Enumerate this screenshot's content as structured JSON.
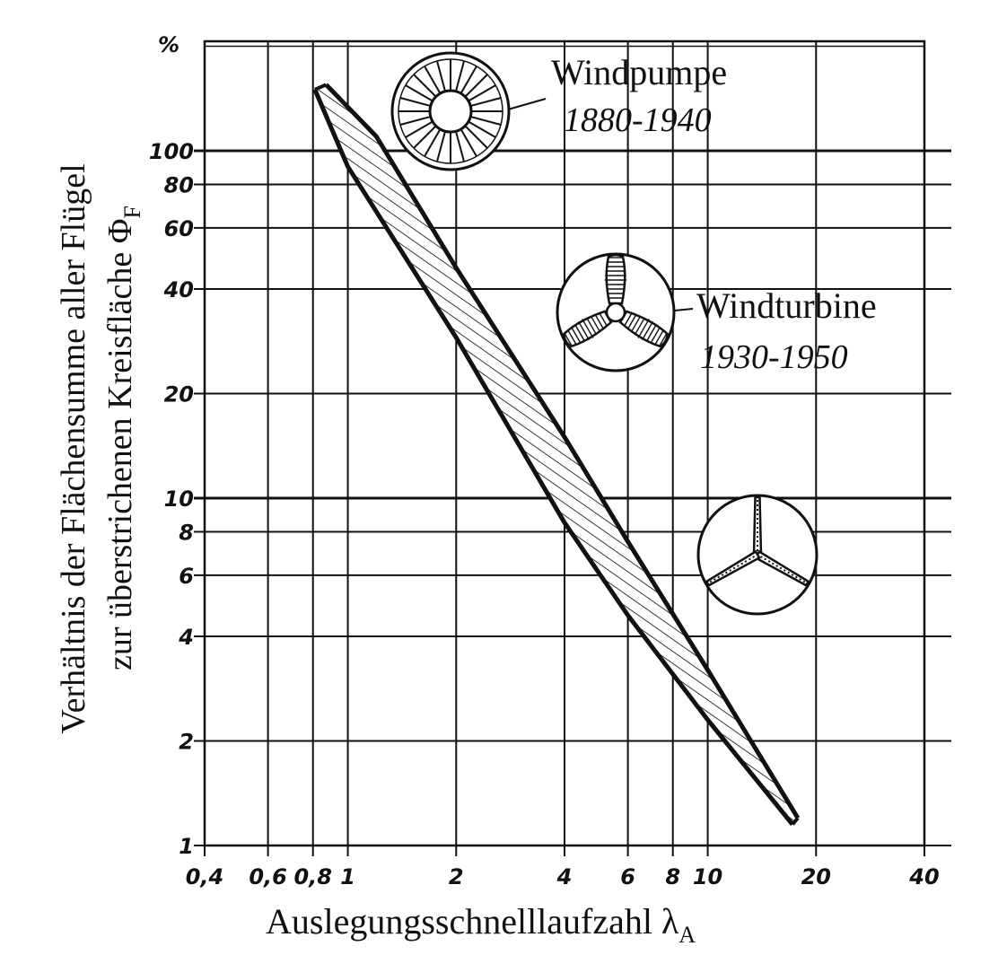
{
  "chart_data": {
    "type": "area",
    "title": "",
    "xlabel": "Auslegungsschnelllaufzahl λ",
    "xlabel_subscript": "A",
    "ylabel_line1": "Verhältnis der Flächensumme aller Flügel",
    "ylabel_line2": "zur überstrichenen Kreisfläche Φ",
    "ylabel_subscript": "F",
    "y_unit": "%",
    "x_scale": "log",
    "y_scale": "log",
    "xlim": [
      0.4,
      40
    ],
    "ylim": [
      1,
      300
    ],
    "grid": true,
    "x_ticks": [
      {
        "value": 0.4,
        "label": "0,4"
      },
      {
        "value": 0.6,
        "label": "0,6"
      },
      {
        "value": 0.8,
        "label": "0,8"
      },
      {
        "value": 1,
        "label": "1"
      },
      {
        "value": 2,
        "label": "2"
      },
      {
        "value": 4,
        "label": "4"
      },
      {
        "value": 6,
        "label": "6"
      },
      {
        "value": 8,
        "label": "8"
      },
      {
        "value": 10,
        "label": "10"
      },
      {
        "value": 20,
        "label": "20"
      },
      {
        "value": 40,
        "label": "40"
      }
    ],
    "y_ticks": [
      {
        "value": 1,
        "label": "1"
      },
      {
        "value": 2,
        "label": "2"
      },
      {
        "value": 4,
        "label": "4"
      },
      {
        "value": 6,
        "label": "6"
      },
      {
        "value": 8,
        "label": "8"
      },
      {
        "value": 10,
        "label": "10"
      },
      {
        "value": 20,
        "label": "20"
      },
      {
        "value": 40,
        "label": "40"
      },
      {
        "value": 60,
        "label": "60"
      },
      {
        "value": 80,
        "label": "80"
      },
      {
        "value": 100,
        "label": "100"
      }
    ],
    "band": {
      "upper": {
        "x": [
          0.87,
          1.2,
          2,
          4,
          6,
          10,
          17.8
        ],
        "y": [
          155,
          110,
          46,
          15,
          7.5,
          3.2,
          1.2
        ]
      },
      "lower": {
        "x": [
          0.81,
          1,
          2,
          4,
          6,
          10,
          17.2
        ],
        "y": [
          150,
          90,
          29,
          8.5,
          4.6,
          2.3,
          1.15
        ]
      }
    },
    "annotations": [
      {
        "name": "Windpumpe",
        "years": "1880-1940"
      },
      {
        "name": "Windturbine",
        "years": "1930-1950"
      }
    ]
  }
}
